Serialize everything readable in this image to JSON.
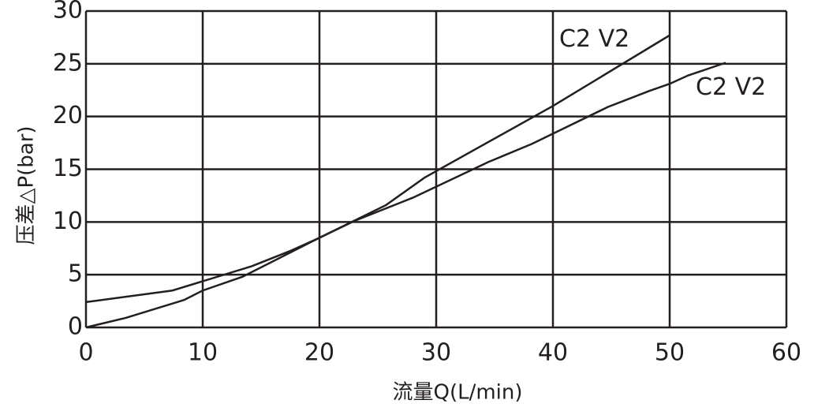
{
  "chart_data": {
    "type": "line",
    "xlabel": "流量Q(L/min)",
    "ylabel": "压差△P(bar)",
    "xlim": [
      0,
      60
    ],
    "xticks": [
      0,
      10,
      20,
      30,
      40,
      50,
      60
    ],
    "ylim": [
      0,
      30
    ],
    "yticks": [
      0,
      5,
      10,
      15,
      20,
      25,
      30
    ],
    "grid": true,
    "series": [
      {
        "name": "C2  V2",
        "color": "#231f20",
        "x": [
          0,
          3.4,
          8.4,
          10,
          13.4,
          20,
          25.7,
          29,
          40,
          50
        ],
        "values": [
          0,
          0.9,
          2.6,
          3.5,
          4.8,
          8.5,
          11.6,
          14.2,
          21,
          27.7
        ]
      },
      {
        "name": "C2  V2",
        "color": "#231f20",
        "x": [
          0,
          7.4,
          14.2,
          17.6,
          20,
          23,
          28,
          34.5,
          38.2,
          44.7,
          48.2,
          50,
          51.6,
          54.8
        ],
        "values": [
          2.4,
          3.5,
          5.8,
          7.3,
          8.5,
          10.1,
          12.3,
          15.7,
          17.4,
          20.9,
          22.4,
          23.1,
          23.9,
          25.1
        ]
      }
    ]
  }
}
